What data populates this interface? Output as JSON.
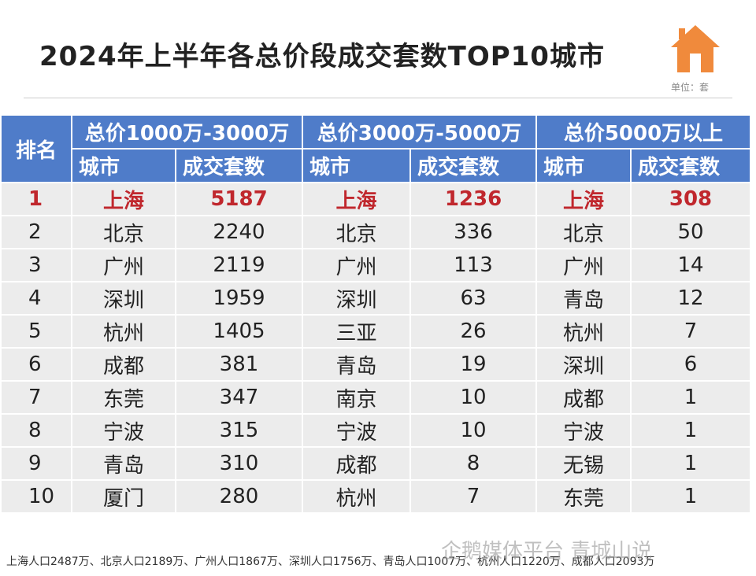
{
  "header": {
    "title": "2024年上半年各总价段成交套数TOP10城市",
    "unit": "单位：套"
  },
  "table": {
    "rank_header": "排名",
    "groups": [
      "总价1000万-3000万",
      "总价3000万-5000万",
      "总价5000万以上"
    ],
    "subheaders": [
      "城市",
      "成交套数",
      "城市",
      "成交套数",
      "城市",
      "成交套数"
    ],
    "rows": [
      [
        1,
        "上海",
        5187,
        "上海",
        1236,
        "上海",
        308
      ],
      [
        2,
        "北京",
        2240,
        "北京",
        336,
        "北京",
        50
      ],
      [
        3,
        "广州",
        2119,
        "广州",
        113,
        "广州",
        14
      ],
      [
        4,
        "深圳",
        1959,
        "深圳",
        63,
        "青岛",
        12
      ],
      [
        5,
        "杭州",
        1405,
        "三亚",
        26,
        "杭州",
        7
      ],
      [
        6,
        "成都",
        381,
        "青岛",
        19,
        "深圳",
        6
      ],
      [
        7,
        "东莞",
        347,
        "南京",
        10,
        "成都",
        1
      ],
      [
        8,
        "宁波",
        315,
        "宁波",
        10,
        "宁波",
        1
      ],
      [
        9,
        "青岛",
        310,
        "成都",
        8,
        "无锡",
        1
      ],
      [
        10,
        "厦门",
        280,
        "杭州",
        7,
        "东莞",
        1
      ]
    ]
  },
  "footer": {
    "note": "上海人口2487万、北京人口2189万、广州人口1867万、深圳人口1756万、青岛人口1007万、杭州人口1220万、成都人口2093万",
    "watermark": "企鹅媒体平台 青城山说"
  }
}
